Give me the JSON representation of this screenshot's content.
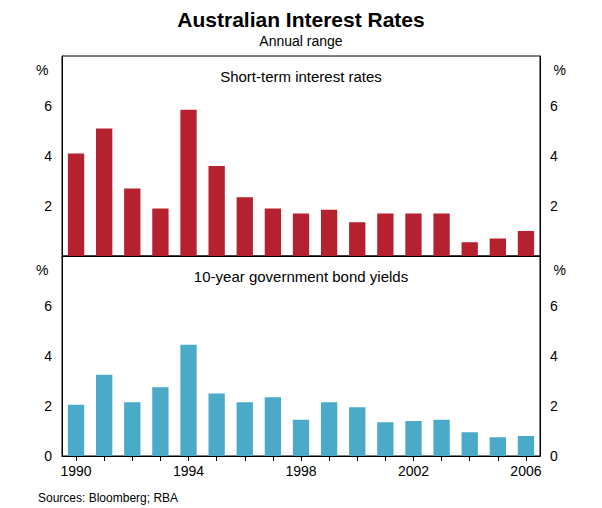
{
  "title": "Australian Interest Rates",
  "subtitle": "Annual range",
  "source": "Sources: Bloomberg; RBA",
  "chart_data": [
    {
      "type": "bar",
      "title": "Short-term interest rates",
      "ylabel": "%",
      "categories": [
        "1990",
        null,
        null,
        null,
        "1994",
        null,
        null,
        null,
        "1998",
        null,
        null,
        null,
        "2002",
        null,
        null,
        null,
        "2006"
      ],
      "values": [
        4.1,
        5.1,
        2.7,
        1.9,
        5.85,
        3.6,
        2.35,
        1.9,
        1.7,
        1.85,
        1.35,
        1.7,
        1.7,
        1.7,
        0.55,
        0.7,
        1.0
      ],
      "color": "#b5212e",
      "ylim": [
        0,
        8
      ],
      "yticks": [
        2,
        4,
        6
      ],
      "grid": false,
      "tick_labels": "y"
    },
    {
      "type": "bar",
      "title": "10-year government bond yields",
      "ylabel": "%",
      "categories": [
        "1990",
        null,
        null,
        null,
        "1994",
        null,
        null,
        null,
        "1998",
        null,
        null,
        null,
        "2002",
        null,
        null,
        null,
        "2006"
      ],
      "values": [
        2.05,
        3.25,
        2.15,
        2.75,
        4.45,
        2.5,
        2.15,
        2.35,
        1.45,
        2.15,
        1.95,
        1.35,
        1.4,
        1.45,
        0.95,
        0.75,
        0.8
      ],
      "color": "#4aaac8",
      "ylim": [
        0,
        8
      ],
      "yticks": [
        0,
        2,
        4,
        6
      ],
      "grid": false
    }
  ]
}
